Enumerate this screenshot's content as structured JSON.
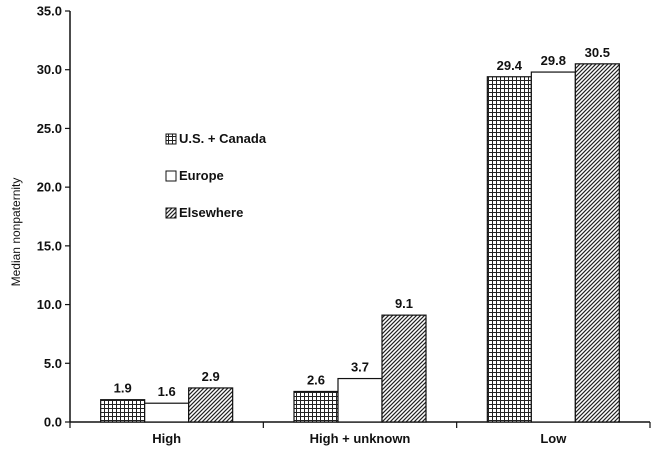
{
  "chart_data": {
    "type": "bar",
    "categories": [
      "High",
      "High + unknown",
      "Low"
    ],
    "series": [
      {
        "name": "U.S. + Canada",
        "values": [
          1.9,
          2.6,
          29.4
        ],
        "pattern": "grid"
      },
      {
        "name": "Europe",
        "values": [
          1.6,
          3.7,
          29.8
        ],
        "pattern": "white"
      },
      {
        "name": "Elsewhere",
        "values": [
          2.9,
          9.1,
          30.5
        ],
        "pattern": "diagonal"
      }
    ],
    "title": "",
    "xlabel": "",
    "ylabel": "Median nonpaternity",
    "ylim": [
      0,
      35
    ],
    "yticks": [
      "0.0",
      "5.0",
      "10.0",
      "15.0",
      "20.0",
      "25.0",
      "30.0",
      "35.0"
    ],
    "grid": false,
    "legend": "upper-left inside plot"
  }
}
